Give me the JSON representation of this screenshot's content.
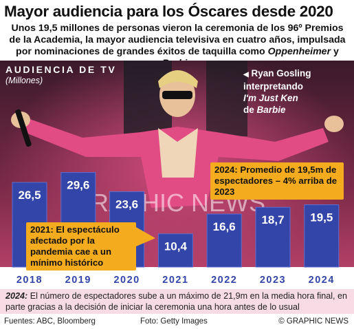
{
  "title": "Mayor audiencia para los Óscares desde 2020",
  "subtitle_part1": "Unos 19,5 millones de personas vieron la ceremonia de los 96º Premios de la Academia, la mayor audiencia televisiva en cuatro años, impulsada por nominaciones de grandes éxitos de taquilla como ",
  "subtitle_film1": "Oppenheimer",
  "subtitle_and": " y ",
  "subtitle_film2": "Barbie",
  "photo_caption": {
    "line1": "Ryan Gosling",
    "line2": "interpretando",
    "song": "I'm Just Ken",
    "line4_prefix": "de ",
    "film": "Barbie"
  },
  "watermark": "GRAPHIC NEWS",
  "colors": {
    "bar": "#3345a8",
    "bar_edge": "#5c6fd1",
    "callout": "#f5ab1e",
    "footnote_bg": "#f7dce6",
    "axis_text": "#3345a8"
  },
  "chart_data": {
    "type": "bar",
    "title": "AUDIENCIA DE TV",
    "ylabel": "(Millones)",
    "categories": [
      "2018",
      "2019",
      "2020",
      "2021",
      "2022",
      "2023",
      "2024"
    ],
    "values": [
      26.5,
      29.6,
      23.6,
      10.4,
      16.6,
      18.7,
      19.5
    ],
    "value_labels": [
      "26,5",
      "29,6",
      "23,6",
      "10,4",
      "16,6",
      "18,7",
      "19,5"
    ],
    "ylim": [
      0,
      40
    ],
    "annotations": [
      {
        "target": "2021",
        "text": "2021: El espectáculo afectado por la pandemia cae a un mínimo histórico"
      },
      {
        "target": "2024",
        "text": "2024: Promedio de 19,5m de espectadores – 4% arriba de 2023"
      }
    ]
  },
  "footnote": {
    "year": "2024:",
    "text": " El número de espectadores sube a un máximo de 21,9m en la media hora final, en parte gracias a la decisión de iniciar la ceremonia una hora antes de lo usual"
  },
  "footer": {
    "sources": "Fuentes: ABC, Bloomberg",
    "photo": "Foto: Getty Images",
    "copyright": "© GRAPHIC NEWS"
  }
}
